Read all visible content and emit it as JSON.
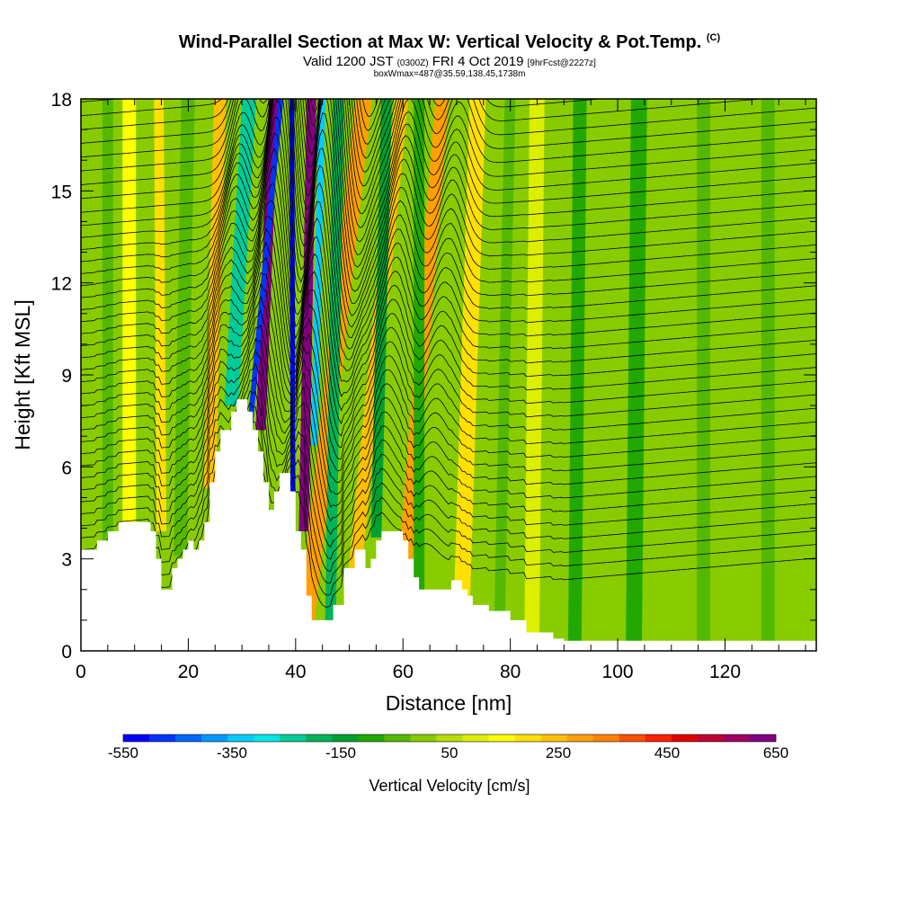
{
  "chart_data": {
    "type": "heatmap",
    "title": "Wind-Parallel Section at Max W: Vertical Velocity & Pot.Temp.",
    "title_mark": "(C)",
    "subtitle_main": "Valid 1200 JST",
    "subtitle_utc": "(0300Z)",
    "subtitle_date": "FRI 4 Oct 2019",
    "subtitle_fcst": "[9hrFcst@2227z]",
    "subtitle2": "boxWmax=487@35.59,138.45,1738m",
    "xlabel": "Distance [nm]",
    "ylabel": "Height [Kft MSL]",
    "xlim": [
      0,
      137
    ],
    "ylim": [
      0,
      18
    ],
    "x_ticks": [
      "0",
      "20",
      "40",
      "60",
      "80",
      "100",
      "120"
    ],
    "y_ticks": [
      "0",
      "3",
      "6",
      "9",
      "12",
      "15",
      "18"
    ],
    "colorbar": {
      "label": "Vertical Velocity [cm/s]",
      "tick_labels": [
        "-550",
        "-350",
        "-150",
        "50",
        "250",
        "450",
        "650"
      ],
      "range": [
        -550,
        650
      ],
      "colors": [
        "#0000ff",
        "#0033ff",
        "#0066ff",
        "#0099ff",
        "#00ccff",
        "#00e6e6",
        "#00cc99",
        "#00b359",
        "#00a030",
        "#22a800",
        "#55b800",
        "#88cc00",
        "#bbdd00",
        "#ddee00",
        "#ffff00",
        "#ffe000",
        "#ffc000",
        "#ffa000",
        "#ff8000",
        "#ff5000",
        "#ff2000",
        "#e00000",
        "#c00030",
        "#a00060",
        "#800080"
      ]
    },
    "terrain_kft": [
      [
        0,
        3.3
      ],
      [
        3,
        3.3
      ],
      [
        3,
        3.6
      ],
      [
        5,
        3.6
      ],
      [
        5,
        3.9
      ],
      [
        7,
        3.9
      ],
      [
        7,
        4.2
      ],
      [
        13,
        4.2
      ],
      [
        13,
        3.9
      ],
      [
        14,
        3.9
      ],
      [
        14,
        3.0
      ],
      [
        15,
        3.0
      ],
      [
        15,
        2.0
      ],
      [
        17,
        2.0
      ],
      [
        17,
        2.7
      ],
      [
        18,
        2.7
      ],
      [
        18,
        3.0
      ],
      [
        19,
        3.0
      ],
      [
        19,
        3.3
      ],
      [
        20,
        3.3
      ],
      [
        20,
        3.6
      ],
      [
        21,
        3.6
      ],
      [
        21,
        3.3
      ],
      [
        22,
        3.3
      ],
      [
        22,
        3.6
      ],
      [
        23,
        3.6
      ],
      [
        23,
        4.2
      ],
      [
        24,
        4.2
      ],
      [
        24,
        5.5
      ],
      [
        25,
        5.5
      ],
      [
        25,
        6.5
      ],
      [
        26,
        6.5
      ],
      [
        26,
        7.2
      ],
      [
        28,
        7.2
      ],
      [
        28,
        7.8
      ],
      [
        29,
        7.8
      ],
      [
        29,
        8.2
      ],
      [
        31,
        8.2
      ],
      [
        31,
        7.8
      ],
      [
        32,
        7.8
      ],
      [
        32,
        7.2
      ],
      [
        33,
        7.2
      ],
      [
        33,
        6.5
      ],
      [
        34,
        6.5
      ],
      [
        34,
        5.5
      ],
      [
        35,
        5.5
      ],
      [
        35,
        4.6
      ],
      [
        36,
        4.6
      ],
      [
        36,
        5.2
      ],
      [
        37,
        5.2
      ],
      [
        37,
        5.8
      ],
      [
        39,
        5.8
      ],
      [
        39,
        5.2
      ],
      [
        40,
        5.2
      ],
      [
        40,
        3.9
      ],
      [
        41,
        3.9
      ],
      [
        41,
        3.3
      ],
      [
        42,
        3.3
      ],
      [
        42,
        1.8
      ],
      [
        43,
        1.8
      ],
      [
        43,
        1.0
      ],
      [
        47,
        1.0
      ],
      [
        47,
        1.5
      ],
      [
        49,
        1.5
      ],
      [
        49,
        2.7
      ],
      [
        51,
        2.7
      ],
      [
        51,
        3.3
      ],
      [
        53,
        3.3
      ],
      [
        53,
        2.7
      ],
      [
        54,
        2.7
      ],
      [
        54,
        3.0
      ],
      [
        55,
        3.0
      ],
      [
        55,
        3.6
      ],
      [
        56,
        3.6
      ],
      [
        56,
        3.9
      ],
      [
        60,
        3.9
      ],
      [
        60,
        3.6
      ],
      [
        61,
        3.6
      ],
      [
        61,
        3.0
      ],
      [
        62,
        3.0
      ],
      [
        62,
        2.4
      ],
      [
        63,
        2.4
      ],
      [
        63,
        2.0
      ],
      [
        69,
        2.0
      ],
      [
        69,
        2.3
      ],
      [
        71,
        2.3
      ],
      [
        71,
        2.0
      ],
      [
        72,
        2.0
      ],
      [
        72,
        1.8
      ],
      [
        73,
        1.8
      ],
      [
        73,
        1.5
      ],
      [
        76,
        1.5
      ],
      [
        76,
        1.3
      ],
      [
        80,
        1.3
      ],
      [
        80,
        1.0
      ],
      [
        83,
        1.0
      ],
      [
        83,
        0.6
      ],
      [
        88,
        0.6
      ],
      [
        88,
        0.4
      ],
      [
        90,
        0.4
      ],
      [
        90,
        0.33
      ],
      [
        137,
        0.33
      ]
    ],
    "velocity_bands": [
      {
        "x_top": 36.0,
        "x_bot": 33.5,
        "y_bot": 7.5,
        "width_nm": 1.8,
        "w": 620
      },
      {
        "x_top": 43.0,
        "x_bot": 41.5,
        "y_bot": 4.2,
        "width_nm": 1.8,
        "w": 620
      },
      {
        "x_top": 39.3,
        "x_bot": 39.5,
        "y_bot": 5.5,
        "width_nm": 0.9,
        "w": -550
      },
      {
        "x_top": 37.5,
        "x_bot": 31.5,
        "y_bot": 7.6,
        "width_nm": 1.0,
        "w": -480
      },
      {
        "x_top": 45.0,
        "x_bot": 43.5,
        "y_bot": 7.0,
        "width_nm": 1.2,
        "w": -330
      },
      {
        "x_top": 31.5,
        "x_bot": 28.0,
        "y_bot": 8.3,
        "width_nm": 2.6,
        "w": -230
      },
      {
        "x_top": 53.0,
        "x_bot": 42.0,
        "y_bot": 1.2,
        "width_nm": 3.0,
        "w": 300
      },
      {
        "x_top": 60.0,
        "x_bot": 51.0,
        "y_bot": 2.8,
        "width_nm": 2.5,
        "w": 260
      },
      {
        "x_top": 67.5,
        "x_bot": 60.0,
        "y_bot": 2.2,
        "width_nm": 2.5,
        "w": 270
      },
      {
        "x_top": 26.0,
        "x_bot": 24.0,
        "y_bot": 5.6,
        "width_nm": 2.2,
        "w": 230
      },
      {
        "x_top": 14.5,
        "x_bot": 15.0,
        "y_bot": 4.2,
        "width_nm": 1.8,
        "w": 170
      },
      {
        "x_top": 20.0,
        "x_bot": 18.5,
        "y_bot": 3.4,
        "width_nm": 2.5,
        "w": -70
      },
      {
        "x_top": 48.0,
        "x_bot": 46.5,
        "y_bot": 1.2,
        "width_nm": 2.0,
        "w": -170
      },
      {
        "x_top": 57.0,
        "x_bot": 55.0,
        "y_bot": 4.0,
        "width_nm": 2.0,
        "w": -120
      },
      {
        "x_top": 63.0,
        "x_bot": 63.0,
        "y_bot": 2.2,
        "width_nm": 2.0,
        "w": -110
      },
      {
        "x_top": 74.0,
        "x_bot": 71.0,
        "y_bot": 2.0,
        "width_nm": 3.0,
        "w": 170
      },
      {
        "x_top": 80.0,
        "x_bot": 78.0,
        "y_bot": 1.3,
        "width_nm": 2.0,
        "w": -60
      },
      {
        "x_top": 85.0,
        "x_bot": 84.0,
        "y_bot": 0.6,
        "width_nm": 2.8,
        "w": 120
      },
      {
        "x_top": 93.0,
        "x_bot": 92.0,
        "y_bot": 0.35,
        "width_nm": 2.5,
        "w": -90
      },
      {
        "x_top": 104.0,
        "x_bot": 103.0,
        "y_bot": 0.35,
        "width_nm": 3.0,
        "w": -90
      },
      {
        "x_top": 116.0,
        "x_bot": 116.0,
        "y_bot": 0.35,
        "width_nm": 2.5,
        "w": -70
      },
      {
        "x_top": 128.0,
        "x_bot": 128.0,
        "y_bot": 0.35,
        "width_nm": 2.5,
        "w": -60
      },
      {
        "x_top": 5.0,
        "x_bot": 5.0,
        "y_bot": 3.6,
        "width_nm": 2.0,
        "w": -60
      },
      {
        "x_top": 9.0,
        "x_bot": 9.0,
        "y_bot": 4.2,
        "width_nm": 2.5,
        "w": 140
      }
    ]
  }
}
